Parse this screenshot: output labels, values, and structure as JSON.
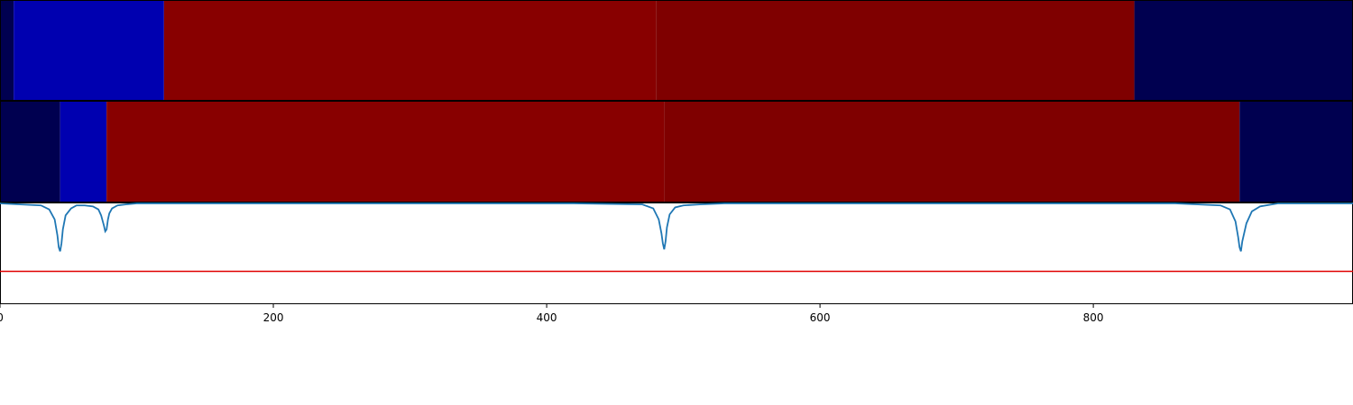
{
  "chart_data": [
    {
      "type": "heatmap",
      "row": 1,
      "xlim": [
        0,
        990
      ],
      "segments": [
        {
          "start": 0,
          "end": 10,
          "color": "#000050"
        },
        {
          "start": 10,
          "end": 120,
          "color": "#0000b0"
        },
        {
          "start": 120,
          "end": 480,
          "color": "#880000"
        },
        {
          "start": 480,
          "end": 830,
          "color": "#7f0000"
        },
        {
          "start": 830,
          "end": 990,
          "color": "#000050"
        }
      ]
    },
    {
      "type": "heatmap",
      "row": 2,
      "xlim": [
        0,
        990
      ],
      "segments": [
        {
          "start": 0,
          "end": 44,
          "color": "#000050"
        },
        {
          "start": 44,
          "end": 78,
          "color": "#0000b0"
        },
        {
          "start": 78,
          "end": 486,
          "color": "#880000"
        },
        {
          "start": 486,
          "end": 907,
          "color": "#7f0000"
        },
        {
          "start": 907,
          "end": 990,
          "color": "#000050"
        }
      ]
    },
    {
      "type": "line",
      "xlim": [
        0,
        990
      ],
      "ylim": [
        -1,
        0
      ],
      "xticks": [
        0,
        200,
        400,
        600,
        800
      ],
      "threshold": {
        "y": -0.68,
        "color": "#e00000"
      },
      "series": [
        {
          "color": "#1f77b4",
          "x": [
            0,
            30,
            36,
            40,
            42,
            43,
            44,
            45,
            46,
            48,
            52,
            56,
            62,
            68,
            72,
            74,
            76,
            77,
            78,
            79,
            80,
            82,
            86,
            92,
            100,
            420,
            470,
            478,
            482,
            484,
            485,
            486,
            487,
            488,
            490,
            494,
            500,
            512,
            530,
            860,
            893,
            900,
            904,
            906,
            907,
            908,
            909,
            912,
            916,
            922,
            935,
            990
          ],
          "y": [
            0,
            -0.02,
            -0.06,
            -0.16,
            -0.32,
            -0.44,
            -0.48,
            -0.4,
            -0.26,
            -0.12,
            -0.05,
            -0.02,
            -0.02,
            -0.03,
            -0.06,
            -0.12,
            -0.22,
            -0.28,
            -0.26,
            -0.16,
            -0.1,
            -0.05,
            -0.02,
            -0.01,
            0,
            0,
            -0.01,
            -0.05,
            -0.16,
            -0.3,
            -0.4,
            -0.46,
            -0.38,
            -0.24,
            -0.11,
            -0.04,
            -0.02,
            -0.01,
            0,
            0,
            -0.02,
            -0.06,
            -0.18,
            -0.34,
            -0.44,
            -0.48,
            -0.38,
            -0.2,
            -0.08,
            -0.03,
            0,
            0
          ]
        }
      ]
    }
  ]
}
